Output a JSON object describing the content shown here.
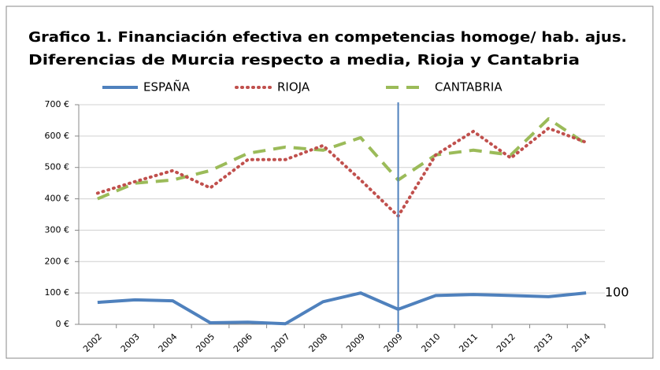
{
  "chart_data": {
    "type": "line",
    "title_lines": [
      "Grafico 1. Financiación efectiva en competencias homoge/ hab. ajus.",
      "Diferencias  de Murcia respecto a media, Rioja y Cantabria"
    ],
    "categories": [
      "2002",
      "2003",
      "2004",
      "2005",
      "2006",
      "2007",
      "2008",
      "2009",
      "2009",
      "2010",
      "2011",
      "2012",
      "2013",
      "2014"
    ],
    "series": [
      {
        "name": "ESPAÑA",
        "color": "#4f81bd",
        "style": "solid",
        "values": [
          70,
          78,
          75,
          5,
          7,
          2,
          72,
          100,
          48,
          92,
          95,
          92,
          88,
          100
        ]
      },
      {
        "name": "RIOJA",
        "color": "#c0504d",
        "style": "dotted",
        "values": [
          418,
          455,
          490,
          435,
          525,
          525,
          570,
          460,
          345,
          540,
          615,
          530,
          625,
          580
        ]
      },
      {
        "name": "CANTABRIA",
        "color": "#9bbb59",
        "style": "dashed",
        "values": [
          400,
          450,
          460,
          490,
          545,
          565,
          555,
          595,
          460,
          540,
          555,
          540,
          655,
          575
        ]
      }
    ],
    "ylim": [
      0,
      700
    ],
    "yticks": [
      {
        "value": 0,
        "label": "0 €"
      },
      {
        "value": 100,
        "label": "100 €"
      },
      {
        "value": 200,
        "label": "200 €"
      },
      {
        "value": 300,
        "label": "300 €"
      },
      {
        "value": 400,
        "label": "400 €"
      },
      {
        "value": 500,
        "label": "500 €"
      },
      {
        "value": 600,
        "label": "600 €"
      },
      {
        "value": 700,
        "label": "700 €"
      }
    ],
    "grid": true,
    "annotation": "100"
  }
}
